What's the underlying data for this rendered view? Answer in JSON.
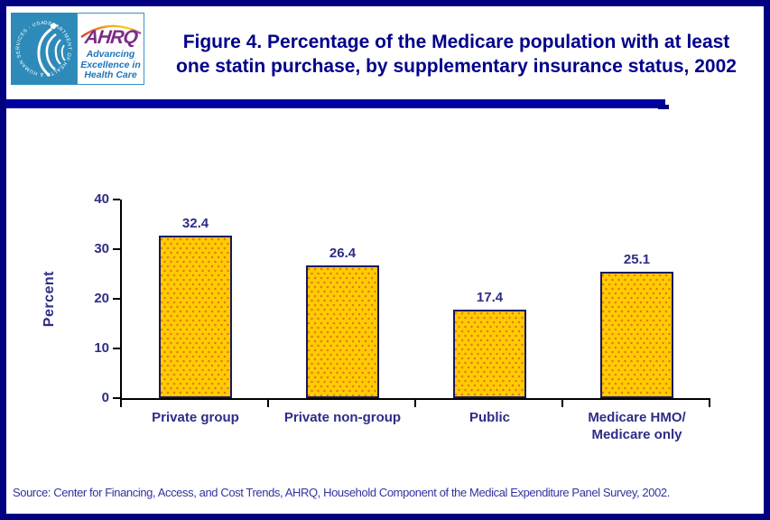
{
  "header": {
    "title_line1": "Figure 4. Percentage of the Medicare population with at least",
    "title_line2": "one statin purchase, by supplementary insurance status, 2002",
    "logo": {
      "hhs_ring_text": "DEPARTMENT OF HEALTH & HUMAN SERVICES - USA",
      "ahrq_acronym": "AHRQ",
      "tagline_lines": [
        "Advancing",
        "Excellence in",
        "Health Care"
      ]
    }
  },
  "chart_data": {
    "type": "bar",
    "title": "Figure 4. Percentage of the Medicare population with at least one statin purchase, by supplementary insurance status, 2002",
    "categories": [
      "Private group",
      "Private non-group",
      "Public",
      "Medicare HMO/\nMedicare only"
    ],
    "values": [
      32.4,
      26.4,
      17.4,
      25.1
    ],
    "value_labels": [
      "32.4",
      "26.4",
      "17.4",
      "25.1"
    ],
    "xlabel": "",
    "ylabel": "Percent",
    "ylim": [
      0,
      40
    ],
    "yticks": [
      0,
      10,
      20,
      30,
      40
    ],
    "grid": false,
    "legend": false,
    "bar_fill_color": "#FFCC00",
    "bar_dot_color": "#E8761E",
    "bar_border_color": "#18185E",
    "text_color": "#2D2D86",
    "axis_color": "#000000"
  },
  "footer": {
    "source": "Source: Center for Financing, Access, and Cost Trends, AHRQ, Household Component of the Medical Expenditure Panel Survey, 2002."
  },
  "colors": {
    "page_border": "#000080",
    "divider_bar": "#0000A0",
    "title_text": "#00008B",
    "hhs_blue": "#2E8BB9",
    "ahrq_purple": "#7B2D86",
    "tagline_blue": "#1B75BC"
  }
}
